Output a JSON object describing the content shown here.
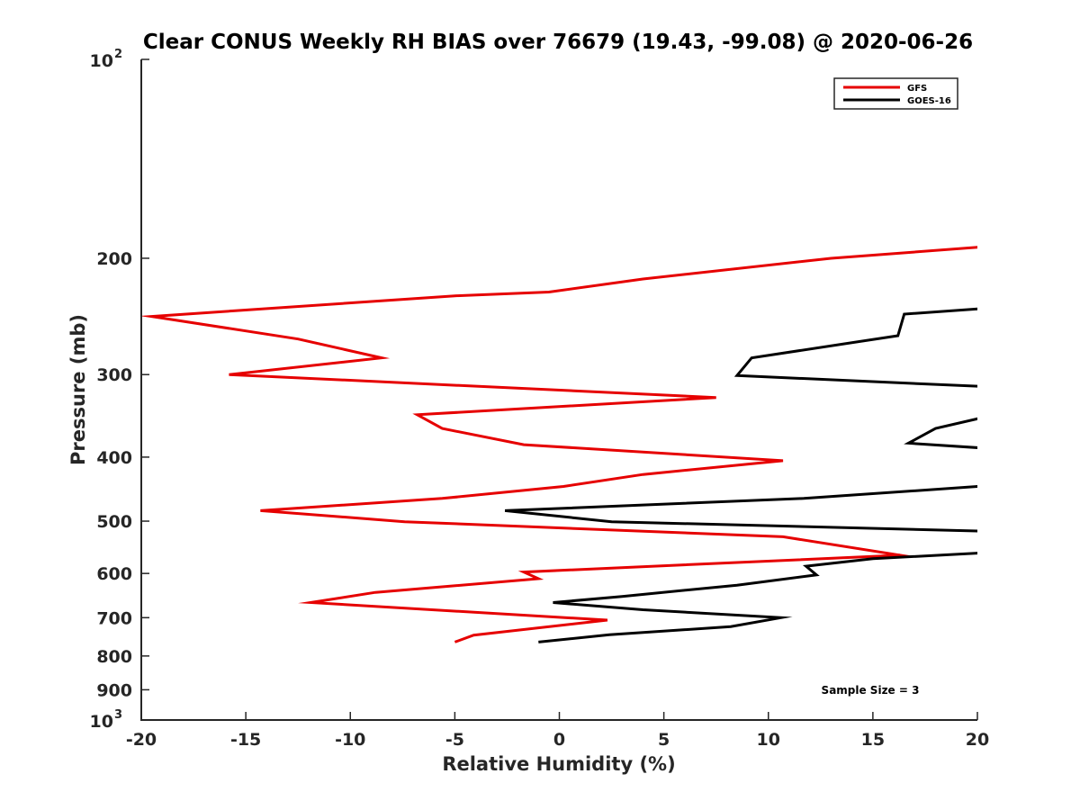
{
  "chart_data": {
    "type": "line",
    "title": "Clear CONUS Weekly RH BIAS over 76679 (19.43, -99.08) @ 2020-06-26",
    "xlabel": "Relative Humidity (%)",
    "ylabel": "Pressure (mb)",
    "xlim": [
      -20,
      20
    ],
    "ylim": [
      100,
      1000
    ],
    "y_scale": "log",
    "y_reversed": true,
    "grid": false,
    "legend_position": "top-right",
    "x_ticks": [
      "-20",
      "-15",
      "-10",
      "-5",
      "0",
      "5",
      "10",
      "15",
      "20"
    ],
    "y_ticks": [
      {
        "value": 100,
        "label": "10",
        "exp": "2"
      },
      {
        "value": 200,
        "label": "200"
      },
      {
        "value": 300,
        "label": "300"
      },
      {
        "value": 400,
        "label": "400"
      },
      {
        "value": 500,
        "label": "500"
      },
      {
        "value": 600,
        "label": "600"
      },
      {
        "value": 700,
        "label": "700"
      },
      {
        "value": 800,
        "label": "800"
      },
      {
        "value": 900,
        "label": "900"
      },
      {
        "value": 1000,
        "label": "10",
        "exp": "3"
      }
    ],
    "annotation": "Sample Size = 3",
    "series": [
      {
        "name": "GFS",
        "color": "#e60000",
        "points": [
          [
            20.5,
            192
          ],
          [
            13.0,
            200
          ],
          [
            4.0,
            215
          ],
          [
            -0.5,
            225
          ],
          [
            -5.0,
            228
          ],
          [
            -19.5,
            245
          ],
          [
            -12.5,
            265
          ],
          [
            -8.5,
            283
          ],
          [
            -15.8,
            300
          ],
          [
            7.5,
            325
          ],
          [
            -6.8,
            345
          ],
          [
            -5.6,
            362
          ],
          [
            -1.7,
            383
          ],
          [
            10.7,
            405
          ],
          [
            4.0,
            425
          ],
          [
            0.2,
            443
          ],
          [
            -5.6,
            462
          ],
          [
            -14.3,
            482
          ],
          [
            -7.4,
            501
          ],
          [
            10.7,
            528
          ],
          [
            16.3,
            563
          ],
          [
            -1.7,
            597
          ],
          [
            -1.0,
            611
          ],
          [
            -8.8,
            641
          ],
          [
            -11.9,
            664
          ],
          [
            2.3,
            706
          ],
          [
            -4.1,
            744
          ],
          [
            -5.0,
            762
          ]
        ]
      },
      {
        "name": "GOES-16",
        "color": "#000000",
        "points": [
          [
            20.5,
            238
          ],
          [
            16.5,
            243
          ],
          [
            16.2,
            262
          ],
          [
            9.2,
            283
          ],
          [
            8.5,
            301
          ],
          [
            20.5,
            313
          ],
          [
            20.5,
            347
          ],
          [
            18.0,
            362
          ],
          [
            16.7,
            381
          ],
          [
            20.5,
            388
          ],
          [
            20.5,
            442
          ],
          [
            11.7,
            462
          ],
          [
            -2.6,
            482
          ],
          [
            2.5,
            501
          ],
          [
            20.5,
            518
          ],
          [
            20.5,
            558
          ],
          [
            15.0,
            570
          ],
          [
            11.8,
            585
          ],
          [
            12.3,
            603
          ],
          [
            8.5,
            625
          ],
          [
            3.0,
            650
          ],
          [
            -0.3,
            664
          ],
          [
            4.0,
            681
          ],
          [
            10.6,
            700
          ],
          [
            8.2,
            722
          ],
          [
            2.4,
            743
          ],
          [
            -1.0,
            762
          ]
        ]
      }
    ]
  }
}
